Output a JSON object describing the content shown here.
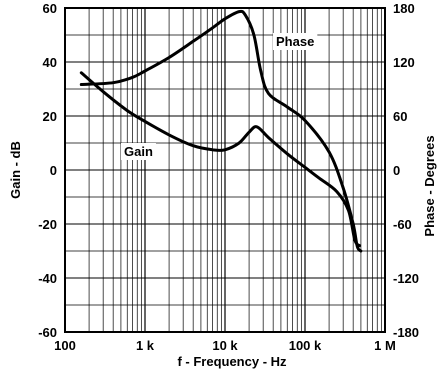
{
  "chart_data": {
    "type": "line",
    "x_scale": "log",
    "xlim": [
      100,
      1000000
    ],
    "xlabel": "f - Frequency - Hz",
    "x_ticks": [
      {
        "value": 100,
        "label": "100"
      },
      {
        "value": 1000,
        "label": "1 k"
      },
      {
        "value": 10000,
        "label": "10 k"
      },
      {
        "value": 100000,
        "label": "100 k"
      },
      {
        "value": 1000000,
        "label": "1 M"
      }
    ],
    "ylabel": "Gain - dB",
    "ylim": [
      -60,
      60
    ],
    "y_ticks": [
      60,
      40,
      20,
      0,
      -20,
      -40,
      -60
    ],
    "y2label": "Phase - Degrees",
    "y2lim": [
      -180,
      180
    ],
    "y2_ticks": [
      180,
      120,
      60,
      0,
      -60,
      -120,
      -180
    ],
    "grid": true,
    "series": [
      {
        "name": "Gain",
        "axis": "left",
        "points": [
          [
            160,
            36
          ],
          [
            300,
            29
          ],
          [
            600,
            22
          ],
          [
            1000,
            18
          ],
          [
            2000,
            13
          ],
          [
            4000,
            9
          ],
          [
            7000,
            7.5
          ],
          [
            10000,
            7.5
          ],
          [
            15000,
            10
          ],
          [
            20000,
            14
          ],
          [
            25000,
            16
          ],
          [
            35000,
            12
          ],
          [
            60000,
            6
          ],
          [
            100000,
            1
          ],
          [
            150000,
            -3
          ],
          [
            250000,
            -8
          ],
          [
            350000,
            -15
          ],
          [
            420000,
            -26
          ],
          [
            480000,
            -28
          ]
        ]
      },
      {
        "name": "Phase",
        "axis": "right",
        "points": [
          [
            160,
            95
          ],
          [
            400,
            97
          ],
          [
            700,
            103
          ],
          [
            1000,
            110
          ],
          [
            2000,
            125
          ],
          [
            4000,
            143
          ],
          [
            7000,
            158
          ],
          [
            10000,
            168
          ],
          [
            15000,
            176
          ],
          [
            18000,
            172
          ],
          [
            23000,
            150
          ],
          [
            28000,
            110
          ],
          [
            35000,
            85
          ],
          [
            60000,
            70
          ],
          [
            100000,
            55
          ],
          [
            200000,
            20
          ],
          [
            300000,
            -20
          ],
          [
            400000,
            -60
          ],
          [
            450000,
            -85
          ],
          [
            500000,
            -90
          ]
        ]
      }
    ]
  }
}
